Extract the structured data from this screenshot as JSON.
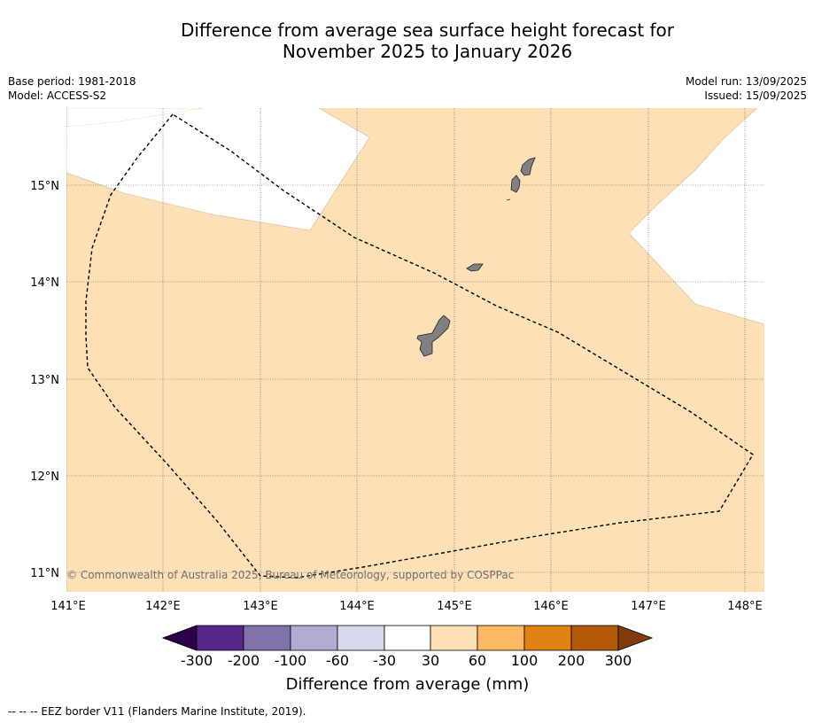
{
  "title_line1": "Difference from average sea surface height forecast for",
  "title_line2": "November 2025 to January 2026",
  "meta_left": [
    "Base period: 1981-2018",
    "Model: ACCESS-S2"
  ],
  "meta_right": [
    "Model run: 13/09/2025",
    "Issued: 15/09/2025"
  ],
  "copyright": "© Commonwealth of Australia 2025, Bureau of Meteorology, supported by COSPPac",
  "map": {
    "lon_labels": [
      "141°E",
      "142°E",
      "143°E",
      "144°E",
      "145°E",
      "146°E",
      "147°E",
      "148°E"
    ],
    "lat_labels": [
      "15°N",
      "14°N",
      "13°N",
      "12°N",
      "11°N"
    ],
    "fill_color": "#fde0b6",
    "land_color": "#808080"
  },
  "colorbar": {
    "colors": [
      "#2d004b",
      "#542788",
      "#8073ac",
      "#b2abd2",
      "#d8daeb",
      "#ffffff",
      "#fde0b6",
      "#fdb863",
      "#e08214",
      "#b35806",
      "#7f3b08"
    ],
    "tick_labels": [
      "-300",
      "-200",
      "-100",
      "-60",
      "-30",
      "30",
      "60",
      "100",
      "200",
      "300"
    ],
    "label": "Difference from average (mm)"
  },
  "footnote": "--  --  -- EEZ border V11 (Flanders Marine Institute, 2019)."
}
